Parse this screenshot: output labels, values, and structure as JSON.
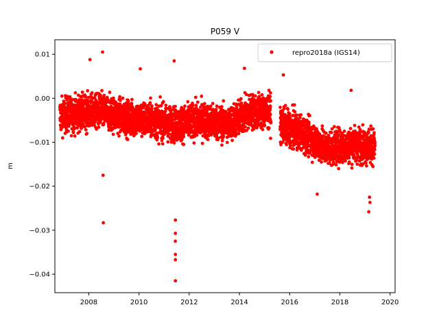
{
  "chart_data": {
    "type": "scatter",
    "title": "P059 V",
    "xlabel": "",
    "ylabel": "m",
    "xlim": [
      2006.65,
      2020.2
    ],
    "ylim": [
      -0.0442,
      0.0133
    ],
    "x_ticks": [
      2008,
      2010,
      2012,
      2014,
      2016,
      2018,
      2020
    ],
    "x_tick_labels": [
      "2008",
      "2010",
      "2012",
      "2014",
      "2016",
      "2018",
      "2020"
    ],
    "y_ticks": [
      0.01,
      0.0,
      -0.01,
      -0.02,
      -0.03,
      -0.04
    ],
    "y_tick_labels": [
      "0.01",
      "0.00",
      "−0.01",
      "−0.02",
      "−0.03",
      "−0.04"
    ],
    "grid": false,
    "legend": {
      "placement": "top-right",
      "entries": [
        "repro2018a (IGS14)"
      ]
    },
    "series": [
      {
        "name": "repro2018a (IGS14)",
        "color": "#ff0000",
        "marker": "circle",
        "trend": [
          [
            2006.85,
            -0.004
          ],
          [
            2007.5,
            -0.0035
          ],
          [
            2008.5,
            -0.003
          ],
          [
            2009.5,
            -0.0045
          ],
          [
            2010.5,
            -0.005
          ],
          [
            2011.5,
            -0.006
          ],
          [
            2012.5,
            -0.005
          ],
          [
            2013.5,
            -0.006
          ],
          [
            2014.5,
            -0.003
          ],
          [
            2015.2,
            -0.003
          ],
          [
            2015.65,
            -0.006
          ],
          [
            2016.5,
            -0.008
          ],
          [
            2017.5,
            -0.0115
          ],
          [
            2018.5,
            -0.0105
          ],
          [
            2019.4,
            -0.011
          ]
        ],
        "spread": 0.0035,
        "gaps": [
          [
            2015.25,
            2015.62
          ]
        ],
        "x_range": [
          2006.85,
          2019.4
        ],
        "outliers": [
          {
            "x": 2008.55,
            "y": 0.0105
          },
          {
            "x": 2008.05,
            "y": 0.0088
          },
          {
            "x": 2011.4,
            "y": 0.0085
          },
          {
            "x": 2008.57,
            "y": -0.0175
          },
          {
            "x": 2008.58,
            "y": -0.0283
          },
          {
            "x": 2011.45,
            "y": -0.0277
          },
          {
            "x": 2011.45,
            "y": -0.0307
          },
          {
            "x": 2011.45,
            "y": -0.0325
          },
          {
            "x": 2011.45,
            "y": -0.0355
          },
          {
            "x": 2011.45,
            "y": -0.0367
          },
          {
            "x": 2011.45,
            "y": -0.0415
          },
          {
            "x": 2019.15,
            "y": -0.0258
          },
          {
            "x": 2019.2,
            "y": -0.0237
          },
          {
            "x": 2019.18,
            "y": -0.0225
          },
          {
            "x": 2017.1,
            "y": -0.0218
          },
          {
            "x": 2018.45,
            "y": 0.0018
          },
          {
            "x": 2015.75,
            "y": 0.0053
          },
          {
            "x": 2014.2,
            "y": 0.0068
          },
          {
            "x": 2010.05,
            "y": 0.0067
          }
        ]
      }
    ]
  }
}
